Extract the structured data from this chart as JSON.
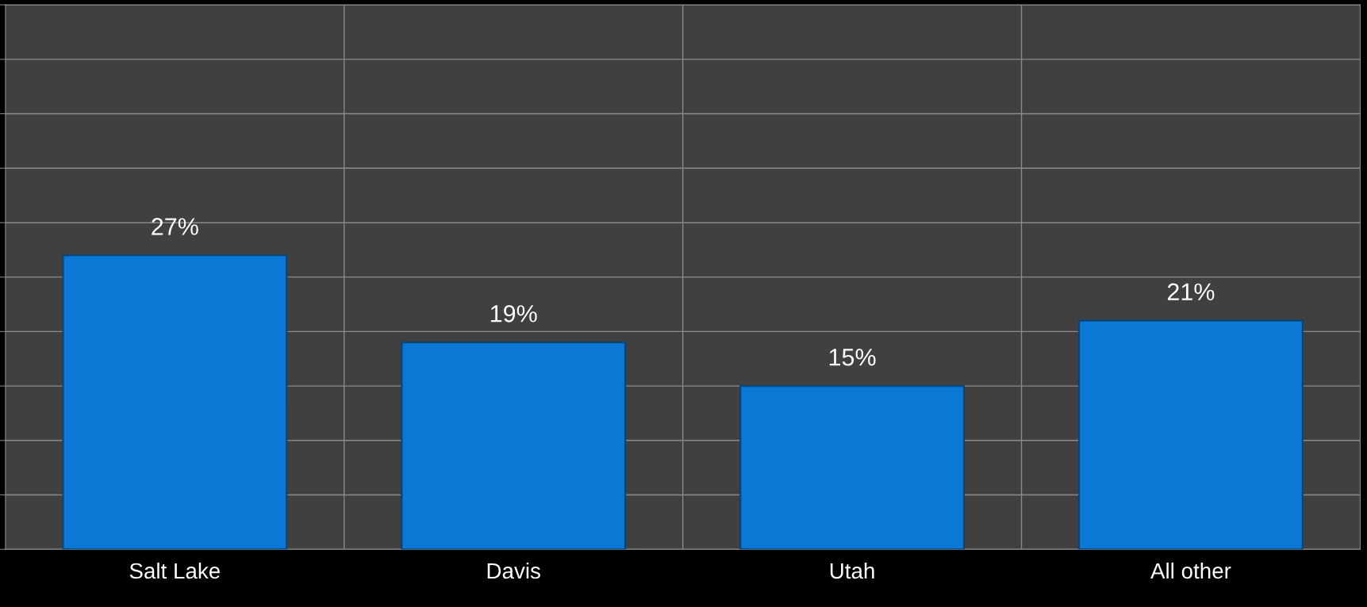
{
  "chart_data": {
    "type": "bar",
    "categories": [
      "Salt Lake",
      "Davis",
      "Utah",
      "All other"
    ],
    "values": [
      27,
      19,
      15,
      21
    ],
    "value_labels": [
      "27%",
      "19%",
      "15%",
      "21%"
    ],
    "color": "#0a78d4",
    "ylim": [
      0,
      50
    ],
    "yticks": [
      {
        "value": 0,
        "label": null
      },
      {
        "value": 5,
        "label": null
      },
      {
        "value": 10,
        "label": null
      },
      {
        "value": 15,
        "label": null
      },
      {
        "value": 20,
        "label": null
      },
      {
        "value": 25,
        "label": null
      },
      {
        "value": 30,
        "label": null
      },
      {
        "value": 35,
        "label": null
      },
      {
        "value": 40,
        "label": null
      },
      {
        "value": 45,
        "label": null
      },
      {
        "value": 50,
        "label": null
      }
    ],
    "tick_labels": "x",
    "grid": true
  }
}
